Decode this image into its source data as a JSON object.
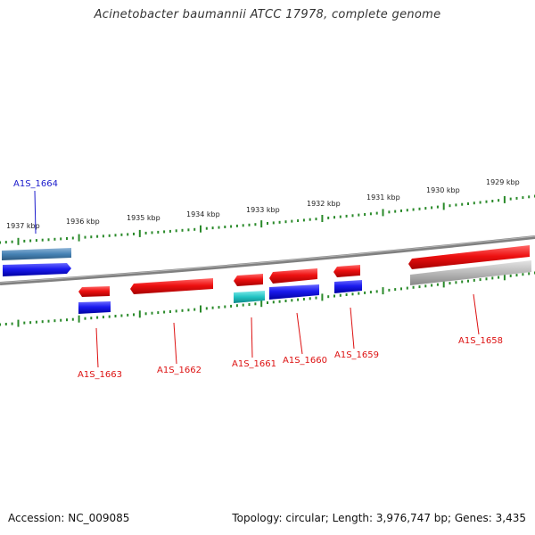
{
  "title": "Acinetobacter baumannii ATCC 17978, complete genome",
  "footer": {
    "accession": "Accession: NC_009085",
    "summary": "Topology: circular; Length: 3,976,747 bp; Genes: 3,435"
  },
  "colors": {
    "backbone": "#808080",
    "tick": "#2a8a2a",
    "forward_gene": "#ee1111",
    "reverse_gene": "#1a1aee",
    "highlight_gene": "#4682b4",
    "other_gene": "#22c3c3",
    "pseudo_gene": "#b0b0b0",
    "label_blue": "#1a1acc",
    "label_red": "#dd1111"
  },
  "scale_labels": [
    "1937 kbp",
    "1936 kbp",
    "1935 kbp",
    "1934 kbp",
    "1933 kbp",
    "1932 kbp",
    "1931 kbp",
    "1930 kbp",
    "1929 kbp"
  ],
  "gene_labels": [
    "A1S_1664",
    "A1S_1663",
    "A1S_1662",
    "A1S_1661",
    "A1S_1660",
    "A1S_1659",
    "A1S_1658"
  ]
}
